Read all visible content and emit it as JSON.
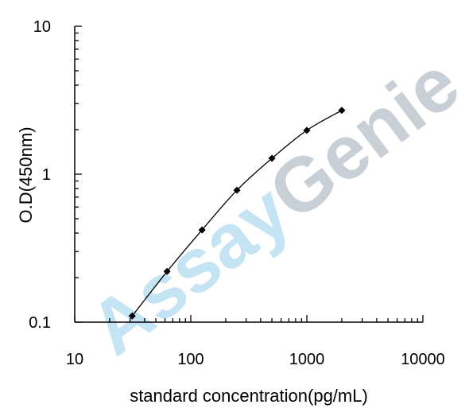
{
  "chart_data": {
    "type": "line",
    "xlabel": "standard concentration(pg/mL)",
    "ylabel": "O.D(450nm)",
    "x_scale": "log",
    "y_scale": "log",
    "xlim": [
      10,
      10000
    ],
    "ylim": [
      0.1,
      10
    ],
    "x_ticks": [
      "10",
      "100",
      "1000",
      "10000"
    ],
    "y_ticks": [
      "0.1",
      "1",
      "10"
    ],
    "grid": false,
    "series": [
      {
        "x": [
          31.25,
          62.5,
          125,
          250,
          500,
          1000,
          2000
        ],
        "y": [
          0.11,
          0.22,
          0.42,
          0.78,
          1.28,
          1.98,
          2.7
        ]
      }
    ],
    "watermark": {
      "text": "AssayGenie",
      "colors": [
        "#7ec4e8",
        "#8a97a6"
      ]
    }
  }
}
